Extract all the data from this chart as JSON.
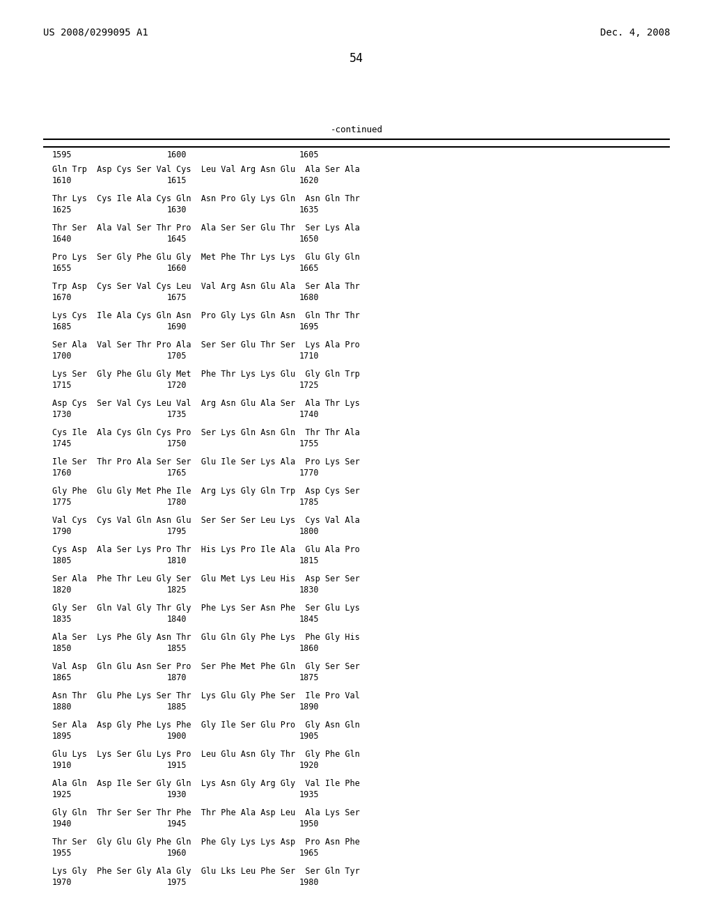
{
  "header_left": "US 2008/0299095 A1",
  "header_right": "Dec. 4, 2008",
  "page_number": "54",
  "continued_label": "-continued",
  "bg": "#ffffff",
  "fg": "#000000",
  "sequence_rows": [
    [
      "Gln Trp  Asp Cys Ser Val Cys  Leu Val Arg Asn Glu  Ala Ser Ala",
      "1610",
      "1615",
      "1620"
    ],
    [
      "Thr Lys  Cys Ile Ala Cys Gln  Asn Pro Gly Lys Gln  Asn Gln Thr",
      "1625",
      "1630",
      "1635"
    ],
    [
      "Thr Ser  Ala Val Ser Thr Pro  Ala Ser Ser Glu Thr  Ser Lys Ala",
      "1640",
      "1645",
      "1650"
    ],
    [
      "Pro Lys  Ser Gly Phe Glu Gly  Met Phe Thr Lys Lys  Glu Gly Gln",
      "1655",
      "1660",
      "1665"
    ],
    [
      "Trp Asp  Cys Ser Val Cys Leu  Val Arg Asn Glu Ala  Ser Ala Thr",
      "1670",
      "1675",
      "1680"
    ],
    [
      "Lys Cys  Ile Ala Cys Gln Asn  Pro Gly Lys Gln Asn  Gln Thr Thr",
      "1685",
      "1690",
      "1695"
    ],
    [
      "Ser Ala  Val Ser Thr Pro Ala  Ser Ser Glu Thr Ser  Lys Ala Pro",
      "1700",
      "1705",
      "1710"
    ],
    [
      "Lys Ser  Gly Phe Glu Gly Met  Phe Thr Lys Lys Glu  Gly Gln Trp",
      "1715",
      "1720",
      "1725"
    ],
    [
      "Asp Cys  Ser Val Cys Leu Val  Arg Asn Glu Ala Ser  Ala Thr Lys",
      "1730",
      "1735",
      "1740"
    ],
    [
      "Cys Ile  Ala Cys Gln Cys Pro  Ser Lys Gln Asn Gln  Thr Thr Ala",
      "1745",
      "1750",
      "1755"
    ],
    [
      "Ile Ser  Thr Pro Ala Ser Ser  Glu Ile Ser Lys Ala  Pro Lys Ser",
      "1760",
      "1765",
      "1770"
    ],
    [
      "Gly Phe  Glu Gly Met Phe Ile  Arg Lys Gly Gln Trp  Asp Cys Ser",
      "1775",
      "1780",
      "1785"
    ],
    [
      "Val Cys  Cys Val Gln Asn Glu  Ser Ser Ser Leu Lys  Cys Val Ala",
      "1790",
      "1795",
      "1800"
    ],
    [
      "Cys Asp  Ala Ser Lys Pro Thr  His Lys Pro Ile Ala  Glu Ala Pro",
      "1805",
      "1810",
      "1815"
    ],
    [
      "Ser Ala  Phe Thr Leu Gly Ser  Glu Met Lys Leu His  Asp Ser Ser",
      "1820",
      "1825",
      "1830"
    ],
    [
      "Gly Ser  Gln Val Gly Thr Gly  Phe Lys Ser Asn Phe  Ser Glu Lys",
      "1835",
      "1840",
      "1845"
    ],
    [
      "Ala Ser  Lys Phe Gly Asn Thr  Glu Gln Gly Phe Lys  Phe Gly His",
      "1850",
      "1855",
      "1860"
    ],
    [
      "Val Asp  Gln Glu Asn Ser Pro  Ser Phe Met Phe Gln  Gly Ser Ser",
      "1865",
      "1870",
      "1875"
    ],
    [
      "Asn Thr  Glu Phe Lys Ser Thr  Lys Glu Gly Phe Ser  Ile Pro Val",
      "1880",
      "1885",
      "1890"
    ],
    [
      "Ser Ala  Asp Gly Phe Lys Phe  Gly Ile Ser Glu Pro  Gly Asn Gln",
      "1895",
      "1900",
      "1905"
    ],
    [
      "Glu Lys  Lys Ser Glu Lys Pro  Leu Glu Asn Gly Thr  Gly Phe Gln",
      "1910",
      "1915",
      "1920"
    ],
    [
      "Ala Gln  Asp Ile Ser Gly Gln  Lys Asn Gly Arg Gly  Val Ile Phe",
      "1925",
      "1930",
      "1935"
    ],
    [
      "Gly Gln  Thr Ser Ser Thr Phe  Thr Phe Ala Asp Leu  Ala Lys Ser",
      "1940",
      "1945",
      "1950"
    ],
    [
      "Thr Ser  Gly Glu Gly Phe Gln  Phe Gly Lys Lys Asp  Pro Asn Phe",
      "1955",
      "1960",
      "1965"
    ],
    [
      "Lys Gly  Phe Ser Gly Ala Gly  Glu Lks Leu Phe Ser  Ser Gln Tyr",
      "1970",
      "1975",
      "1980"
    ]
  ]
}
